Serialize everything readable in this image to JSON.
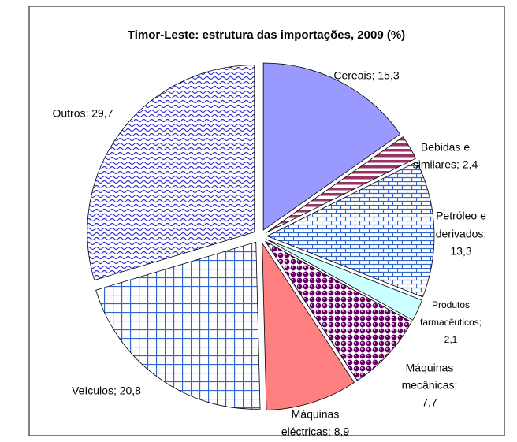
{
  "chart_data": {
    "type": "pie",
    "title": "Timor-Leste: estrutura das importações, 2009 (%)",
    "values": [
      15.3,
      2.4,
      13.3,
      2.1,
      7.7,
      8.9,
      20.8,
      29.7
    ],
    "value_labels": [
      [
        "Cereais; 15,3"
      ],
      [
        "Bebidas e",
        "similares; 2,4"
      ],
      [
        "Petróleo e",
        "derivados;",
        "13,3"
      ],
      [
        "Produtos",
        "farmacêuticos;",
        "2,1"
      ],
      [
        "Máquinas",
        "mecânicas;",
        "7,7"
      ],
      [
        "Máquinas",
        "eléctricas; 8,9"
      ],
      [
        "Veículos; 20,8"
      ],
      [
        "Outros; 29,7"
      ]
    ],
    "colors": [
      "#9999ff",
      "#993366",
      "#3366cc",
      "#ccffff",
      "#660066",
      "#ff8080",
      "#3366cc",
      "#3333cc"
    ],
    "patterns": [
      "solid",
      "hstripes",
      "brick",
      "solid",
      "dots",
      "solid",
      "grid",
      "wave"
    ]
  }
}
